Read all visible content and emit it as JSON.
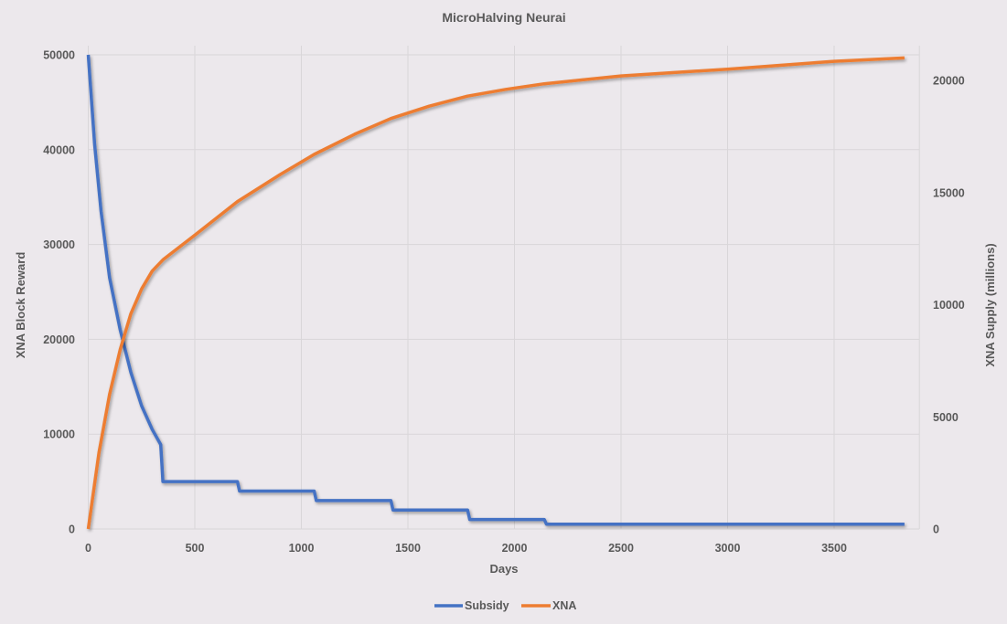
{
  "chart_data": {
    "type": "line",
    "title": "MicroHalving Neurai",
    "xlabel": "Days",
    "ylabel": "XNA Block Reward",
    "y2label": "XNA Supply (millions)",
    "x_ticks": [
      0,
      500,
      1000,
      1500,
      2000,
      2500,
      3000,
      3500
    ],
    "y_ticks": [
      0,
      10000,
      20000,
      30000,
      40000,
      50000
    ],
    "y2_ticks": [
      0,
      5000,
      10000,
      15000,
      20000
    ],
    "xlim": [
      0,
      3900
    ],
    "ylim": [
      0,
      50000
    ],
    "y2lim": [
      0,
      21150
    ],
    "grid": true,
    "legend_position": "bottom",
    "series": [
      {
        "name": "Subsidy",
        "axis": "left",
        "color": "#4472c4",
        "x": [
          0,
          30,
          60,
          100,
          150,
          200,
          250,
          300,
          340,
          345,
          350,
          700,
          710,
          1060,
          1070,
          1420,
          1430,
          1780,
          1790,
          2140,
          2150,
          3830
        ],
        "values": [
          50000,
          40500,
          33500,
          26500,
          21000,
          16500,
          13000,
          10500,
          8900,
          7000,
          5000,
          5000,
          4000,
          4000,
          3000,
          3000,
          2000,
          2000,
          1000,
          1000,
          500,
          500
        ]
      },
      {
        "name": "XNA",
        "axis": "right",
        "color": "#ed7d31",
        "x": [
          0,
          50,
          100,
          150,
          200,
          250,
          300,
          350,
          500,
          700,
          900,
          1060,
          1250,
          1420,
          1600,
          1780,
          1960,
          2140,
          2500,
          3000,
          3500,
          3830
        ],
        "values": [
          0,
          3400,
          6000,
          8000,
          9600,
          10700,
          11500,
          12000,
          13100,
          14600,
          15800,
          16700,
          17600,
          18300,
          18850,
          19300,
          19600,
          19850,
          20200,
          20500,
          20850,
          21000
        ]
      }
    ]
  },
  "legend": {
    "items": [
      {
        "label": "Subsidy",
        "color": "#4472c4"
      },
      {
        "label": "XNA",
        "color": "#ed7d31"
      }
    ]
  }
}
